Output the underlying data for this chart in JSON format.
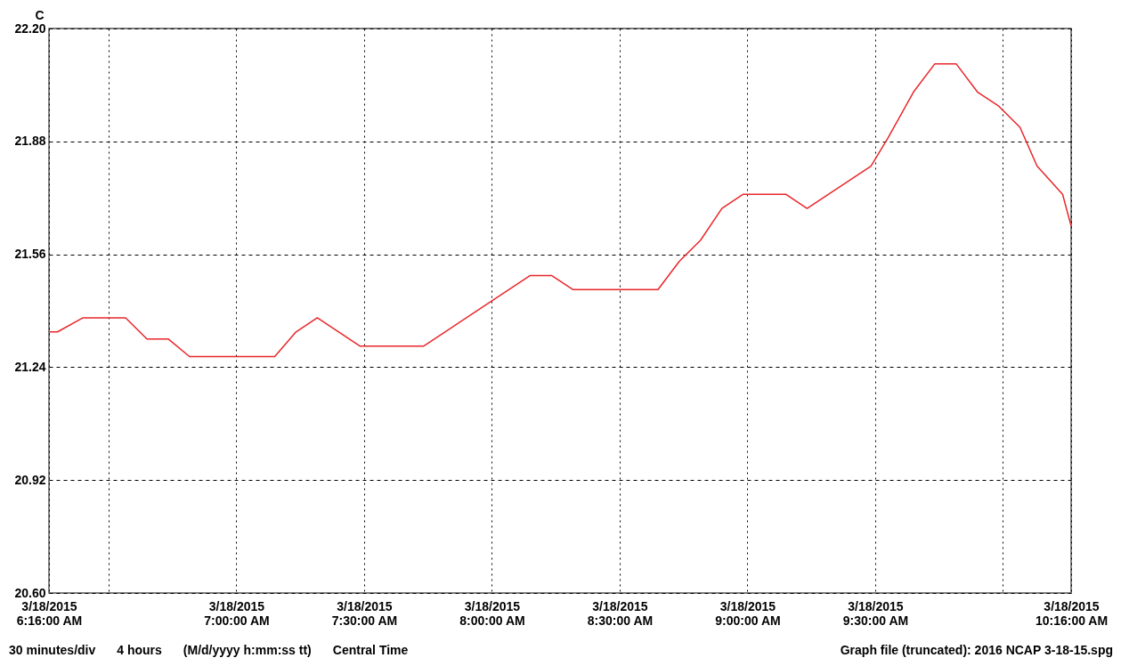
{
  "chart_data": {
    "type": "line",
    "ylabel": "C",
    "x": [
      "2015-03-18T06:16",
      "2015-03-18T06:18",
      "2015-03-18T06:24",
      "2015-03-18T06:34",
      "2015-03-18T06:39",
      "2015-03-18T06:44",
      "2015-03-18T06:49",
      "2015-03-18T07:09",
      "2015-03-18T07:14",
      "2015-03-18T07:19",
      "2015-03-18T07:29",
      "2015-03-18T07:44",
      "2015-03-18T08:09",
      "2015-03-18T08:14",
      "2015-03-18T08:19",
      "2015-03-18T08:39",
      "2015-03-18T08:44",
      "2015-03-18T08:49",
      "2015-03-18T08:54",
      "2015-03-18T08:59",
      "2015-03-18T09:09",
      "2015-03-18T09:14",
      "2015-03-18T09:29",
      "2015-03-18T09:33",
      "2015-03-18T09:39",
      "2015-03-18T09:44",
      "2015-03-18T09:49",
      "2015-03-18T09:54",
      "2015-03-18T09:59",
      "2015-03-18T10:04",
      "2015-03-18T10:08",
      "2015-03-18T10:14",
      "2015-03-18T10:16"
    ],
    "series": [
      {
        "color": "#e8262a",
        "values": [
          21.34,
          21.34,
          21.38,
          21.38,
          21.32,
          21.32,
          21.27,
          21.27,
          21.34,
          21.38,
          21.3,
          21.3,
          21.5,
          21.5,
          21.46,
          21.46,
          21.54,
          21.6,
          21.69,
          21.73,
          21.73,
          21.69,
          21.81,
          21.89,
          22.02,
          22.1,
          22.1,
          22.02,
          21.98,
          21.92,
          21.81,
          21.73,
          21.64
        ]
      }
    ],
    "xlim": [
      "2015-03-18T06:16",
      "2015-03-18T10:16"
    ],
    "xticks": [
      {
        "value": "2015-03-18T06:16",
        "label": "3/18/2015\n6:16:00 AM"
      },
      {
        "value": "2015-03-18T06:30",
        "label": null
      },
      {
        "value": "2015-03-18T07:00",
        "label": "3/18/2015\n7:00:00 AM"
      },
      {
        "value": "2015-03-18T07:30",
        "label": "3/18/2015\n7:30:00 AM"
      },
      {
        "value": "2015-03-18T08:00",
        "label": "3/18/2015\n8:00:00 AM"
      },
      {
        "value": "2015-03-18T08:30",
        "label": "3/18/2015\n8:30:00 AM"
      },
      {
        "value": "2015-03-18T09:00",
        "label": "3/18/2015\n9:00:00 AM"
      },
      {
        "value": "2015-03-18T09:30",
        "label": "3/18/2015\n9:30:00 AM"
      },
      {
        "value": "2015-03-18T10:00",
        "label": null
      },
      {
        "value": "2015-03-18T10:16",
        "label": "3/18/2015\n10:16:00 AM"
      }
    ],
    "ylim": [
      20.6,
      22.2
    ],
    "yticks": [
      {
        "value": 20.6,
        "label": "20.60"
      },
      {
        "value": 20.92,
        "label": "20.92"
      },
      {
        "value": 21.24,
        "label": "21.24"
      },
      {
        "value": 21.56,
        "label": "21.56"
      },
      {
        "value": 21.88,
        "label": "21.88"
      },
      {
        "value": 22.2,
        "label": "22.20"
      }
    ],
    "grid": true,
    "marker": "none",
    "line_style": "solid",
    "annotations": [
      "30 minutes/div",
      "4 hours",
      "(M/d/yyyy h:mm:ss tt)",
      "Central Time",
      "Graph file (truncated): 2016 NCAP 3-18-15.spg"
    ]
  }
}
